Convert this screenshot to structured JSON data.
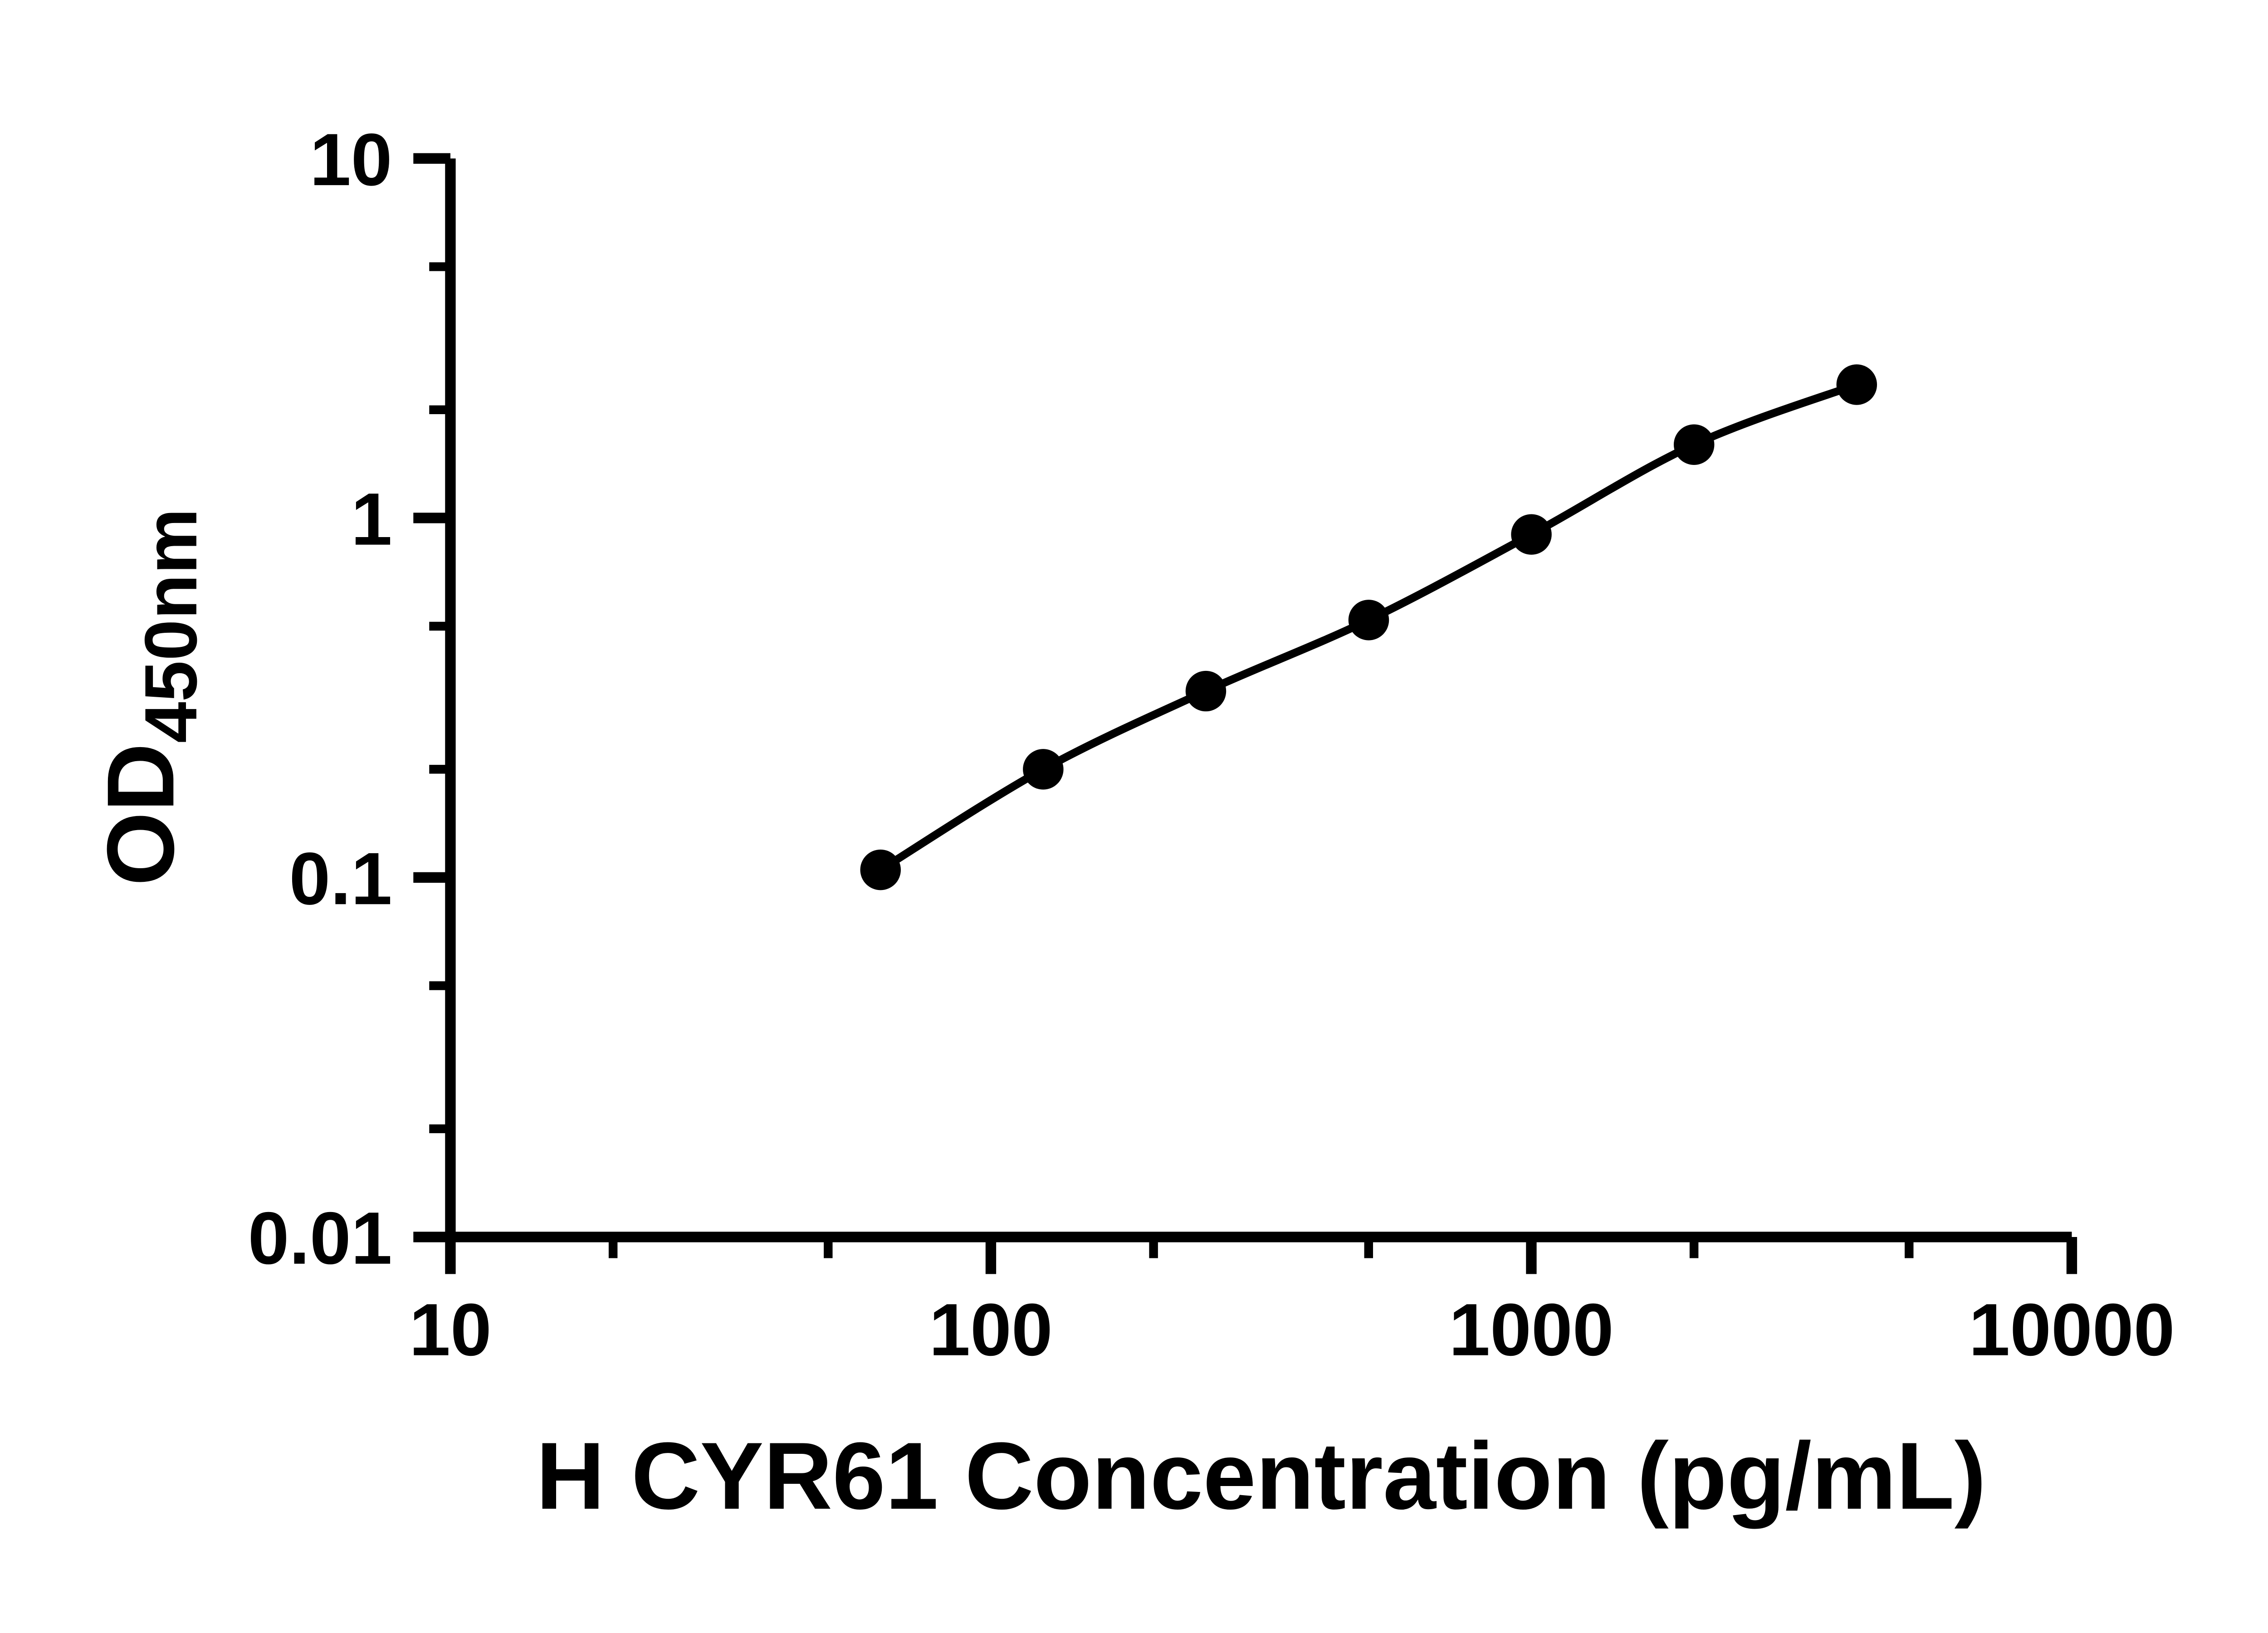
{
  "figure": {
    "background": "#ffffff",
    "foreground": "#000000"
  },
  "chart_data": {
    "type": "scatter",
    "x": [
      62.5,
      125,
      250,
      500,
      1000,
      2000,
      4000
    ],
    "y": [
      0.105,
      0.2,
      0.33,
      0.52,
      0.9,
      1.6,
      2.35
    ],
    "curve": "smooth fit line through all points",
    "title": "",
    "xlabel": "H CYR61 Concentration (pg/mL)",
    "ylabel": "OD",
    "ylabel_sub": "450nm",
    "xscale": "log",
    "yscale": "log",
    "xlim": [
      10,
      10000
    ],
    "ylim": [
      0.01,
      10
    ],
    "x_ticks": {
      "values": [
        10,
        100,
        1000,
        10000
      ],
      "labels": [
        "10",
        "100",
        "1000",
        "10000"
      ]
    },
    "y_ticks": {
      "values": [
        0.01,
        0.1,
        1,
        10
      ],
      "labels": [
        "0.01",
        "0.1",
        "1",
        "10"
      ]
    },
    "x_minor_ticks": [
      20,
      50,
      200,
      500,
      2000,
      5000
    ],
    "y_minor_ticks": [
      0.02,
      0.05,
      0.2,
      0.5,
      2,
      5
    ],
    "grid": false,
    "legend": "none",
    "marker": "filled-circle",
    "marker_color": "#000000",
    "line_color": "#000000"
  }
}
